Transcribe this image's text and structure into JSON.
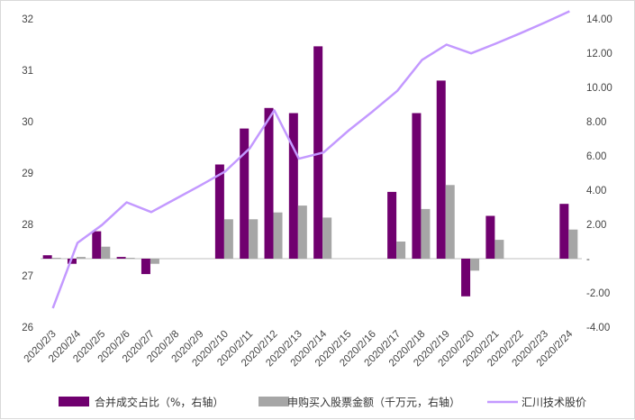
{
  "chart_data": {
    "type": "bar",
    "categories": [
      "2020/2/3",
      "2020/2/4",
      "2020/2/5",
      "2020/2/6",
      "2020/2/7",
      "2020/2/8",
      "2020/2/9",
      "2020/2/10",
      "2020/2/11",
      "2020/2/12",
      "2020/2/13",
      "2020/2/14",
      "2020/2/15",
      "2020/2/16",
      "2020/2/17",
      "2020/2/18",
      "2020/2/19",
      "2020/2/20",
      "2020/2/21",
      "2020/2/22",
      "2020/2/23",
      "2020/2/24"
    ],
    "left_axis": {
      "min": 26,
      "max": 32,
      "ticks": [
        "26",
        "27",
        "28",
        "29",
        "30",
        "31",
        "32"
      ]
    },
    "right_axis": {
      "min": -4,
      "max": 14,
      "ticks": [
        "-4.00",
        "-2.00",
        "-",
        "2.00",
        "4.00",
        "6.00",
        "8.00",
        "10.00",
        "12.00",
        "14.00"
      ]
    },
    "series": [
      {
        "name": "合并成交占比（%，右轴）",
        "type": "bar",
        "axis": "right",
        "color": "#70006f",
        "values": [
          0.2,
          -0.3,
          1.6,
          0.1,
          -0.9,
          null,
          null,
          5.5,
          7.6,
          8.8,
          8.5,
          12.4,
          null,
          null,
          3.9,
          8.5,
          10.4,
          -2.2,
          2.5,
          null,
          null,
          3.2
        ]
      },
      {
        "name": "申购买入股票金额（千万元，右轴）",
        "type": "bar",
        "axis": "right",
        "color": "#a6a6a6",
        "values": [
          0.05,
          0.1,
          0.7,
          0.05,
          -0.3,
          null,
          null,
          2.3,
          2.3,
          2.7,
          3.1,
          2.4,
          null,
          null,
          1.0,
          2.9,
          4.3,
          -0.7,
          1.1,
          null,
          null,
          1.7
        ]
      },
      {
        "name": "汇川技术股价",
        "type": "line",
        "axis": "left",
        "color": "#c399ff",
        "values": [
          26.37,
          27.64,
          27.99,
          28.43,
          28.24,
          28.5,
          28.76,
          29.03,
          29.48,
          30.22,
          29.28,
          29.4,
          29.82,
          30.2,
          30.6,
          31.2,
          31.5,
          31.33,
          31.52,
          31.72,
          31.93,
          32.15
        ]
      }
    ]
  }
}
